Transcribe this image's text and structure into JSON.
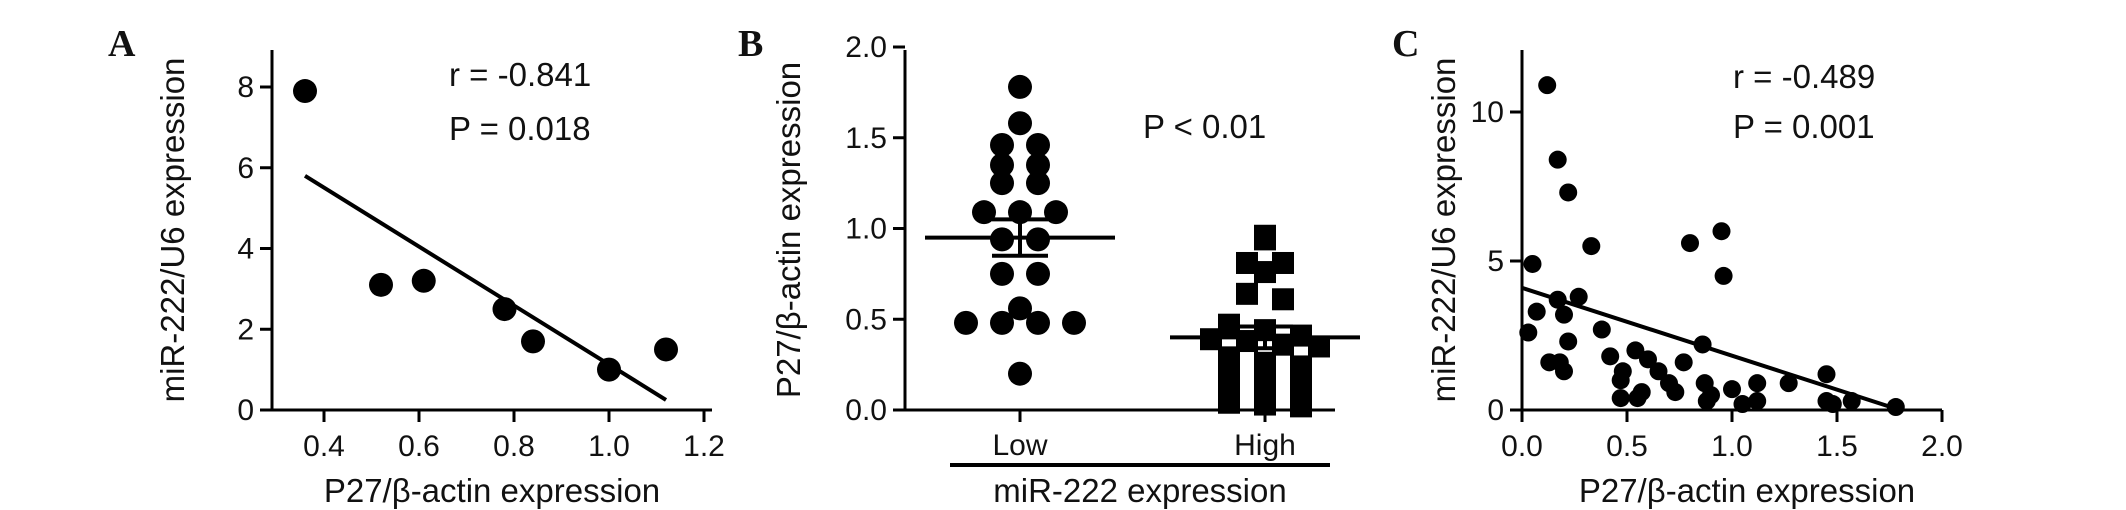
{
  "chart_data": [
    {
      "panel": "A",
      "type": "scatter",
      "xlabel": "P27/β-actin expression",
      "ylabel": "miR-222/U6 expression",
      "xlim": [
        0.3,
        1.2
      ],
      "ylim": [
        0,
        9
      ],
      "xticks": [
        "0.4",
        "0.6",
        "0.8",
        "1.0",
        "1.2"
      ],
      "yticks": [
        "0",
        "2",
        "4",
        "6",
        "8"
      ],
      "x": [
        0.36,
        0.52,
        0.61,
        0.78,
        0.84,
        1.0,
        1.12
      ],
      "y": [
        7.9,
        3.1,
        3.2,
        2.5,
        1.7,
        1.0,
        1.5
      ],
      "fit_line": [
        [
          0.36,
          5.8
        ],
        [
          1.12,
          0.25
        ]
      ],
      "annotations": [
        "r = -0.841",
        "P =  0.018"
      ],
      "grid": false
    },
    {
      "panel": "B",
      "type": "scatter",
      "xlabel": "miR-222 expression",
      "ylabel": "P27/β-actin expression",
      "ylim": [
        0,
        2.0
      ],
      "yticks": [
        "0.0",
        "0.5",
        "1.0",
        "1.5",
        "2.0"
      ],
      "categories": [
        "Low",
        "High"
      ],
      "series": [
        {
          "category": "Low",
          "marker": "circle",
          "values": [
            1.78,
            1.58,
            1.46,
            1.46,
            1.35,
            1.35,
            1.25,
            1.25,
            1.09,
            1.09,
            1.09,
            0.94,
            0.94,
            0.75,
            0.75,
            0.56,
            0.48,
            0.48,
            0.48,
            0.48,
            0.2
          ],
          "mean": 0.95,
          "sem": [
            0.85,
            1.05
          ]
        },
        {
          "category": "High",
          "marker": "square",
          "values": [
            0.96,
            0.94,
            0.81,
            0.81,
            0.76,
            0.64,
            0.61,
            0.47,
            0.44,
            0.41,
            0.39,
            0.38,
            0.36,
            0.35,
            0.29,
            0.26,
            0.24,
            0.21,
            0.19,
            0.16,
            0.13,
            0.09,
            0.05,
            0.04,
            0.03,
            0.02
          ],
          "mean": 0.4,
          "sem": [
            0.34,
            0.46
          ]
        }
      ],
      "annotations": [
        "P < 0.01"
      ],
      "grid": false
    },
    {
      "panel": "C",
      "type": "scatter",
      "xlabel": "P27/β-actin expression",
      "ylabel": "miR-222/U6 expression",
      "xlim": [
        0,
        2.0
      ],
      "ylim": [
        0,
        12
      ],
      "xticks": [
        "0.0",
        "0.5",
        "1.0",
        "1.5",
        "2.0"
      ],
      "yticks": [
        "0",
        "5",
        "10"
      ],
      "x": [
        0.12,
        0.17,
        0.22,
        0.33,
        0.05,
        0.8,
        0.95,
        0.96,
        0.07,
        0.17,
        0.27,
        0.2,
        0.38,
        0.22,
        0.03,
        0.86,
        0.54,
        0.13,
        0.42,
        0.6,
        0.2,
        0.48,
        0.65,
        0.77,
        0.7,
        0.18,
        0.47,
        0.57,
        0.87,
        0.73,
        0.9,
        1.45,
        1.12,
        1.27,
        1.0,
        0.47,
        0.55,
        1.05,
        1.12,
        0.88,
        1.45,
        1.48,
        1.57,
        1.78
      ],
      "y": [
        10.9,
        8.4,
        7.3,
        5.5,
        4.9,
        5.6,
        6.0,
        4.5,
        3.3,
        3.7,
        3.8,
        3.2,
        2.7,
        2.3,
        2.6,
        2.2,
        2.0,
        1.6,
        1.8,
        1.7,
        1.3,
        1.3,
        1.3,
        1.6,
        0.9,
        1.6,
        1.0,
        0.6,
        0.9,
        0.6,
        0.5,
        1.2,
        0.9,
        0.9,
        0.7,
        0.4,
        0.4,
        0.2,
        0.3,
        0.3,
        0.3,
        0.2,
        0.3,
        0.1
      ],
      "fit_line": [
        [
          0.0,
          4.1
        ],
        [
          1.8,
          0.0
        ]
      ],
      "annotations": [
        "r  = -0.489",
        "P = 0.001"
      ],
      "grid": false
    }
  ],
  "panels": {
    "A": {
      "letter": "A",
      "xlabel": "P27/β-actin expression",
      "ylabel": "miR-222/U6 expression",
      "annot1": "r = -0.841",
      "annot2": "P =  0.018"
    },
    "B": {
      "letter": "B",
      "xlabel": "miR-222 expression",
      "ylabel": "P27/β-actin expression",
      "cat1": "Low",
      "cat2": "High",
      "annot1": "P < 0.01"
    },
    "C": {
      "letter": "C",
      "xlabel": "P27/β-actin expression",
      "ylabel": "miR-222/U6 expression",
      "annot1": "r  = -0.489",
      "annot2": "P = 0.001"
    }
  },
  "colors": {
    "marks": "#000000",
    "background": "#ffffff"
  }
}
